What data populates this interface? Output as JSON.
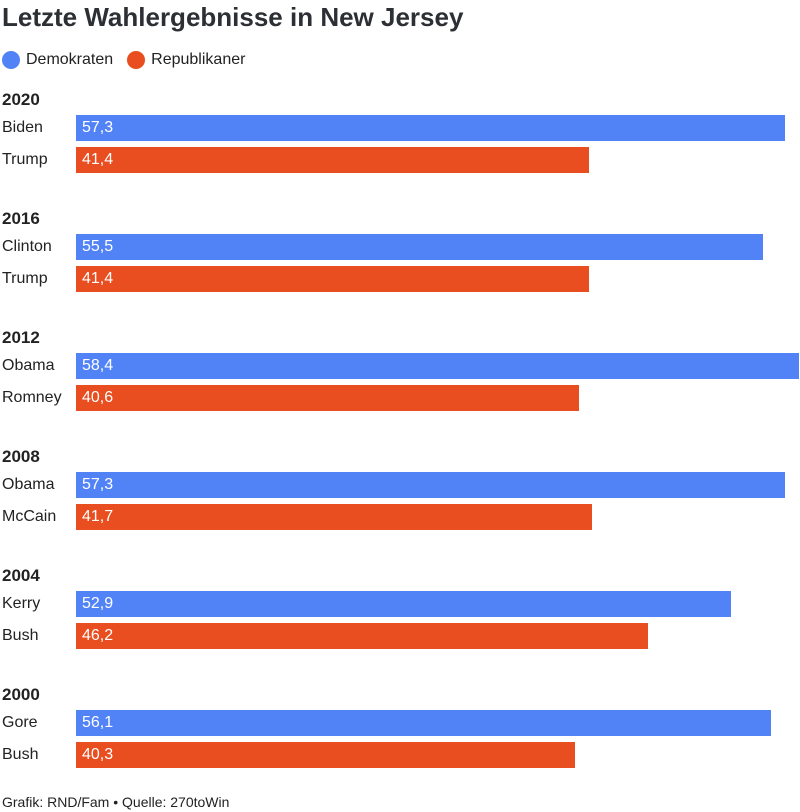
{
  "title": "Letzte Wahlergebnisse in New Jersey",
  "legend": [
    {
      "label": "Demokraten",
      "color": "#5283f6"
    },
    {
      "label": "Republikaner",
      "color": "#e84e1f"
    }
  ],
  "colors": {
    "dem": "#5283f6",
    "rep": "#e84e1f"
  },
  "footer": "Grafik: RND/Fam • Quelle: 270toWin",
  "chart_data": {
    "type": "bar",
    "orientation": "horizontal",
    "title": "Letzte Wahlergebnisse in New Jersey",
    "xlim": [
      0,
      58.4
    ],
    "grid": false,
    "legend_position": "top-left",
    "groups": [
      {
        "year": "2020",
        "entries": [
          {
            "name": "Biden",
            "value": 57.3,
            "label": "57,3",
            "party": "dem"
          },
          {
            "name": "Trump",
            "value": 41.4,
            "label": "41,4",
            "party": "rep"
          }
        ]
      },
      {
        "year": "2016",
        "entries": [
          {
            "name": "Clinton",
            "value": 55.5,
            "label": "55,5",
            "party": "dem"
          },
          {
            "name": "Trump",
            "value": 41.4,
            "label": "41,4",
            "party": "rep"
          }
        ]
      },
      {
        "year": "2012",
        "entries": [
          {
            "name": "Obama",
            "value": 58.4,
            "label": "58,4",
            "party": "dem"
          },
          {
            "name": "Romney",
            "value": 40.6,
            "label": "40,6",
            "party": "rep"
          }
        ]
      },
      {
        "year": "2008",
        "entries": [
          {
            "name": "Obama",
            "value": 57.3,
            "label": "57,3",
            "party": "dem"
          },
          {
            "name": "McCain",
            "value": 41.7,
            "label": "41,7",
            "party": "rep"
          }
        ]
      },
      {
        "year": "2004",
        "entries": [
          {
            "name": "Kerry",
            "value": 52.9,
            "label": "52,9",
            "party": "dem"
          },
          {
            "name": "Bush",
            "value": 46.2,
            "label": "46,2",
            "party": "rep"
          }
        ]
      },
      {
        "year": "2000",
        "entries": [
          {
            "name": "Gore",
            "value": 56.1,
            "label": "56,1",
            "party": "dem"
          },
          {
            "name": "Bush",
            "value": 40.3,
            "label": "40,3",
            "party": "rep"
          }
        ]
      }
    ]
  }
}
